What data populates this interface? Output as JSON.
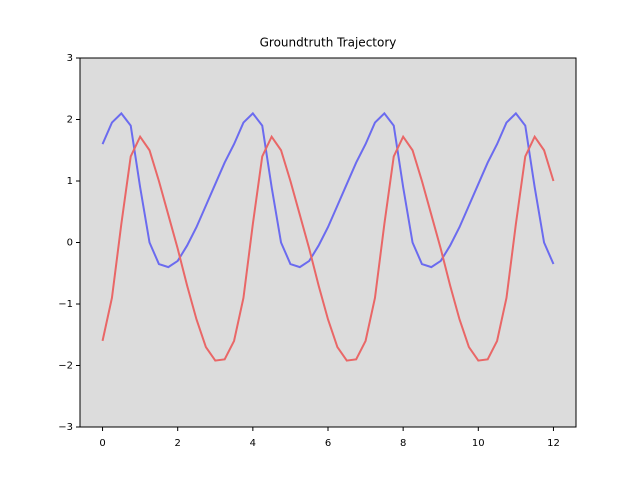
{
  "chart_data": {
    "type": "line",
    "title": "Groundtruth Trajectory",
    "x": [
      0,
      0.25,
      0.5,
      0.75,
      1,
      1.25,
      1.5,
      1.75,
      2,
      2.25,
      2.5,
      2.75,
      3,
      3.25,
      3.5,
      3.75,
      4,
      4.25,
      4.5,
      4.75,
      5,
      5.25,
      5.5,
      5.75,
      6,
      6.25,
      6.5,
      6.75,
      7,
      7.25,
      7.5,
      7.75,
      8,
      8.25,
      8.5,
      8.75,
      9,
      9.25,
      9.5,
      9.75,
      10,
      10.25,
      10.5,
      10.75,
      11,
      11.25,
      11.5,
      11.75,
      12
    ],
    "series": [
      {
        "color": "#6b6bef",
        "values": [
          1.6,
          1.95,
          2.1,
          1.9,
          0.9,
          0.0,
          -0.35,
          -0.4,
          -0.3,
          -0.05,
          0.25,
          0.6,
          0.95,
          1.3,
          1.6,
          1.95,
          2.1,
          1.9,
          0.9,
          0.0,
          -0.35,
          -0.4,
          -0.3,
          -0.05,
          0.25,
          0.6,
          0.95,
          1.3,
          1.6,
          1.95,
          2.1,
          1.9,
          0.9,
          0.0,
          -0.35,
          -0.4,
          -0.3,
          -0.05,
          0.25,
          0.6,
          0.95,
          1.3,
          1.6,
          1.95,
          2.1,
          1.9,
          0.9,
          0.0,
          -0.35
        ]
      },
      {
        "color": "#e96767",
        "values": [
          -1.6,
          -0.9,
          0.3,
          1.4,
          1.72,
          1.5,
          1.0,
          0.45,
          -0.1,
          -0.7,
          -1.25,
          -1.7,
          -1.92,
          -1.9,
          -1.6,
          -0.9,
          0.3,
          1.4,
          1.72,
          1.5,
          1.0,
          0.45,
          -0.1,
          -0.7,
          -1.25,
          -1.7,
          -1.92,
          -1.9,
          -1.6,
          -0.9,
          0.3,
          1.4,
          1.72,
          1.5,
          1.0,
          0.45,
          -0.1,
          -0.7,
          -1.25,
          -1.7,
          -1.92,
          -1.9,
          -1.6,
          -0.9,
          0.3,
          1.4,
          1.72,
          1.5,
          1.0
        ]
      }
    ],
    "xlim": [
      -0.6,
      12.6
    ],
    "ylim": [
      -3,
      3
    ],
    "xticks": [
      0,
      2,
      4,
      6,
      8,
      10,
      12
    ],
    "yticks": [
      {
        "value": -3,
        "label": "−3"
      },
      {
        "value": -2,
        "label": "−2"
      },
      {
        "value": -1,
        "label": "−1"
      },
      0,
      1,
      2,
      3
    ],
    "background": "#dcdcdc"
  }
}
